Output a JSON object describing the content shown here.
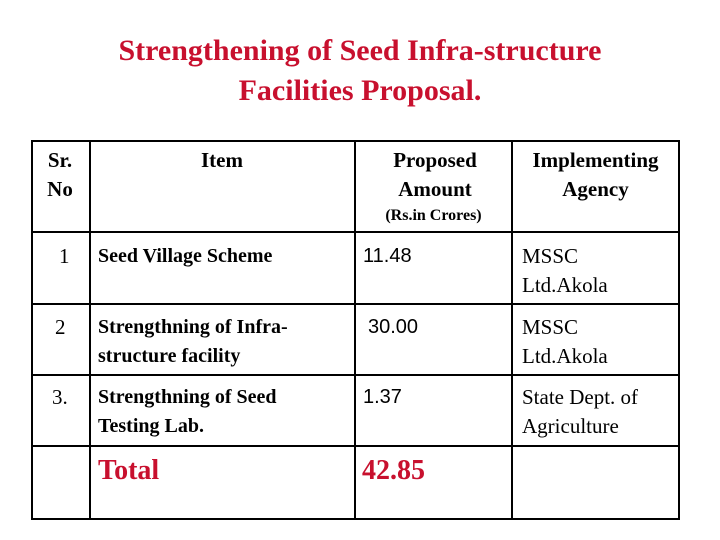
{
  "header": {
    "title_lines": [
      "Strengthening of Seed  Infra-structure",
      "Facilities Proposal."
    ]
  },
  "table": {
    "columns": [
      "Sr. No",
      "Item",
      "Proposed Amount",
      "Implementing Agency"
    ],
    "amount_unit": "(Rs.in Crores)",
    "rows": [
      [
        "1",
        "Seed Village Scheme",
        "11.48",
        "MSSC Ltd.Akola"
      ],
      [
        "2",
        "Strengthning of  Infra-structure facility",
        "30.00",
        "MSSC Ltd.Akola"
      ],
      [
        "3.",
        "Strengthning of Seed Testing Lab.",
        "1.37",
        "State Dept. of Agriculture"
      ]
    ],
    "total": {
      "label": "Total",
      "amount": "42.85"
    }
  }
}
